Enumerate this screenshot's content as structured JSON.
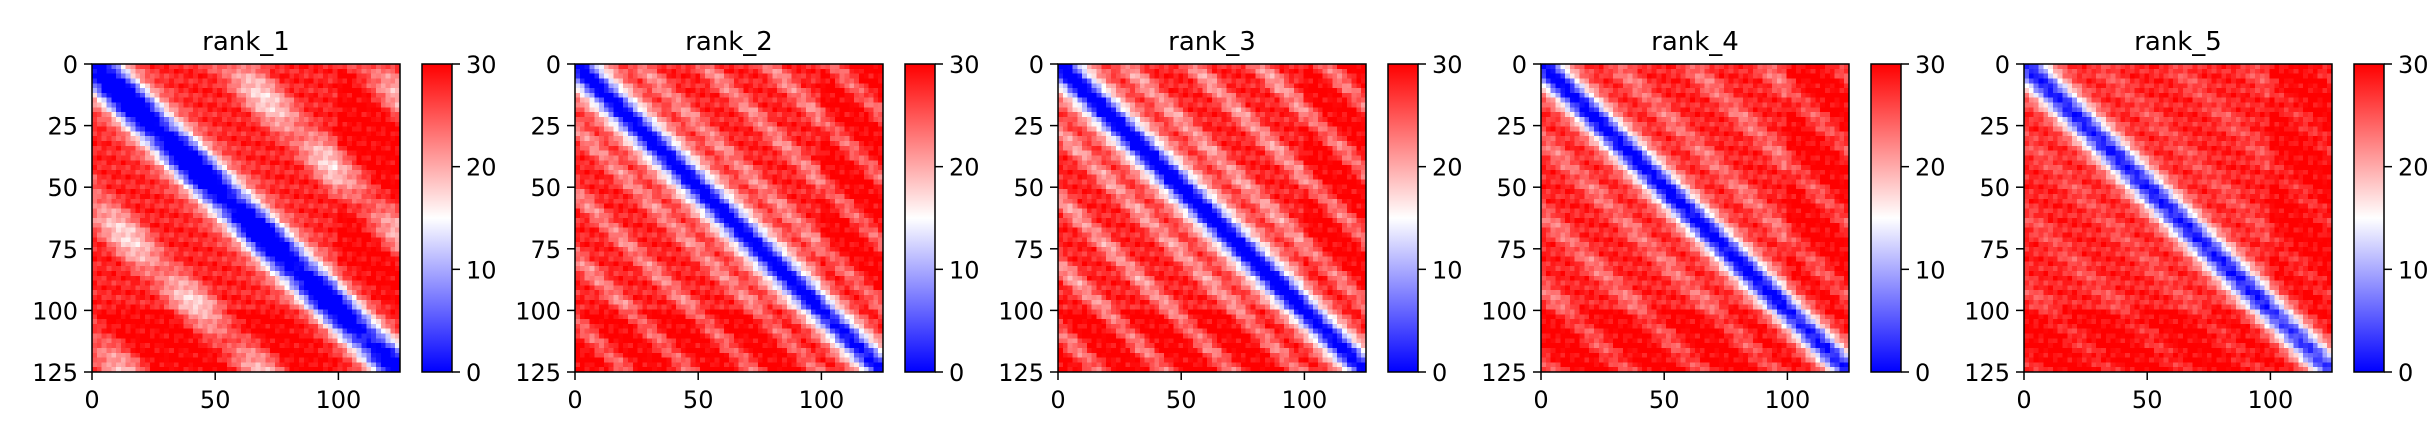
{
  "chart_data": [
    {
      "type": "heatmap",
      "title": "rank_1",
      "size": 125,
      "xlim": [
        0,
        125
      ],
      "ylim": [
        125,
        0
      ],
      "x_ticks": [
        0,
        50,
        100
      ],
      "y_ticks": [
        0,
        25,
        50,
        75,
        100,
        125
      ],
      "colorbar": {
        "min": 0,
        "max": 30,
        "ticks": [
          0,
          10,
          20,
          30
        ],
        "colormap": "bwr"
      },
      "pattern": {
        "diagonal_band": 9,
        "offdiag_period": 56,
        "offdiag_amplitude": 0.9,
        "offdiag_width": 7
      }
    },
    {
      "type": "heatmap",
      "title": "rank_2",
      "size": 125,
      "xlim": [
        0,
        125
      ],
      "ylim": [
        125,
        0
      ],
      "x_ticks": [
        0,
        50,
        100
      ],
      "y_ticks": [
        0,
        25,
        50,
        75,
        100,
        125
      ],
      "colorbar": {
        "min": 0,
        "max": 30,
        "ticks": [
          0,
          10,
          20,
          30
        ],
        "colormap": "bwr"
      },
      "pattern": {
        "diagonal_band": 8,
        "offdiag_period": 26,
        "offdiag_amplitude": 0.55,
        "offdiag_width": 6
      }
    },
    {
      "type": "heatmap",
      "title": "rank_3",
      "size": 125,
      "xlim": [
        0,
        125
      ],
      "ylim": [
        125,
        0
      ],
      "x_ticks": [
        0,
        50,
        100
      ],
      "y_ticks": [
        0,
        25,
        50,
        75,
        100,
        125
      ],
      "colorbar": {
        "min": 0,
        "max": 30,
        "ticks": [
          0,
          10,
          20,
          30
        ],
        "colormap": "bwr"
      },
      "pattern": {
        "diagonal_band": 8,
        "offdiag_period": 27,
        "offdiag_amplitude": 0.65,
        "offdiag_width": 6
      }
    },
    {
      "type": "heatmap",
      "title": "rank_4",
      "size": 125,
      "xlim": [
        0,
        125
      ],
      "ylim": [
        125,
        0
      ],
      "x_ticks": [
        0,
        50,
        100
      ],
      "y_ticks": [
        0,
        25,
        50,
        75,
        100,
        125
      ],
      "colorbar": {
        "min": 0,
        "max": 30,
        "ticks": [
          0,
          10,
          20,
          30
        ],
        "colormap": "bwr"
      },
      "pattern": {
        "diagonal_band": 7,
        "offdiag_period": 30,
        "offdiag_amplitude": 0.45,
        "offdiag_width": 6
      }
    },
    {
      "type": "heatmap",
      "title": "rank_5",
      "size": 125,
      "xlim": [
        0,
        125
      ],
      "ylim": [
        125,
        0
      ],
      "x_ticks": [
        0,
        50,
        100
      ],
      "y_ticks": [
        0,
        25,
        50,
        75,
        100,
        125
      ],
      "colorbar": {
        "min": 0,
        "max": 30,
        "ticks": [
          0,
          10,
          20,
          30
        ],
        "colormap": "bwr"
      },
      "pattern": {
        "diagonal_band": 7,
        "offdiag_period": 30,
        "offdiag_amplitude": 0.25,
        "offdiag_width": 6
      }
    }
  ],
  "colors": {
    "low": "#0000ff",
    "mid": "#ffffff",
    "high": "#ff0000"
  }
}
